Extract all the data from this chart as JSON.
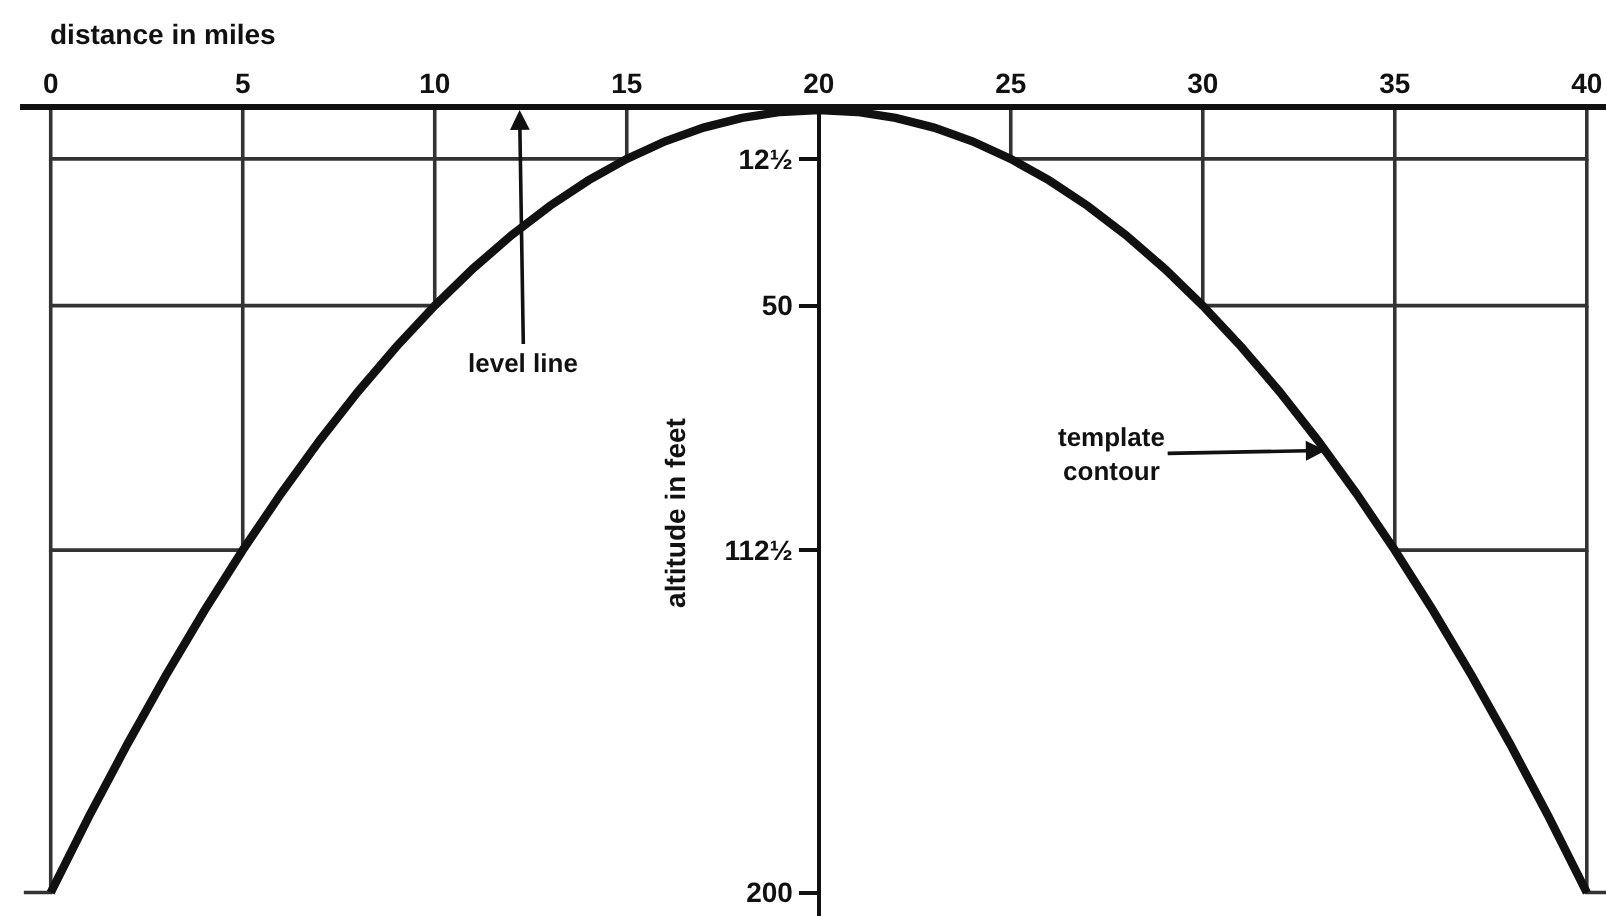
{
  "chart_data": {
    "type": "line",
    "xlabel": "distance in miles",
    "ylabel": "altitude in feet",
    "xlim": [
      -0.8,
      40.5
    ],
    "xticks": [
      0,
      5,
      10,
      15,
      20,
      25,
      30,
      35,
      40
    ],
    "ylim": [
      206,
      0
    ],
    "yticks": [
      {
        "value": 12.5,
        "label": "12½"
      },
      50,
      {
        "value": 112.5,
        "label": "112½"
      },
      200
    ],
    "series": [
      {
        "color": "#111111",
        "x": [
          0,
          1,
          2,
          3,
          4,
          5,
          6,
          7,
          8,
          9,
          10,
          11,
          12,
          13,
          14,
          15,
          16,
          17,
          18,
          19,
          20,
          21,
          22,
          23,
          24,
          25,
          26,
          27,
          28,
          29,
          30,
          31,
          32,
          33,
          34,
          35,
          36,
          37,
          38,
          39,
          40
        ],
        "values": [
          200,
          180.5,
          162,
          144.5,
          128,
          112.5,
          98,
          84.5,
          72,
          60.5,
          50,
          40.5,
          32,
          24.5,
          18,
          12.5,
          8,
          4.5,
          2,
          0.5,
          0,
          0.5,
          2,
          4.5,
          8,
          12.5,
          18,
          24.5,
          32,
          40.5,
          50,
          60.5,
          72,
          84.5,
          98,
          112.5,
          128,
          144.5,
          162,
          180.5,
          200
        ]
      },
      {
        "color": "#333333",
        "x": [
          0,
          0,
          15,
          15
        ],
        "values": [
          0,
          12.5,
          12.5,
          0
        ]
      },
      {
        "color": "#333333",
        "x": [
          0,
          0,
          10,
          10
        ],
        "values": [
          12.5,
          50,
          50,
          0
        ]
      },
      {
        "color": "#333333",
        "x": [
          0,
          0,
          5,
          5
        ],
        "values": [
          50,
          112.5,
          112.5,
          0
        ]
      },
      {
        "color": "#333333",
        "x": [
          0,
          0,
          -0.7
        ],
        "values": [
          112.5,
          200,
          200
        ]
      },
      {
        "color": "#333333",
        "x": [
          40,
          40,
          25,
          25
        ],
        "values": [
          0,
          12.5,
          12.5,
          0
        ]
      },
      {
        "color": "#333333",
        "x": [
          40,
          40,
          30,
          30
        ],
        "values": [
          12.5,
          50,
          50,
          0
        ]
      },
      {
        "color": "#333333",
        "x": [
          40,
          40,
          35,
          35
        ],
        "values": [
          50,
          112.5,
          112.5,
          0
        ]
      },
      {
        "color": "#333333",
        "x": [
          40,
          40,
          40.5
        ],
        "values": [
          112.5,
          200,
          200
        ]
      }
    ],
    "annotations": [
      "level line",
      {
        "text": "template\ncontour",
        "x": 33.2,
        "y": 87
      }
    ]
  }
}
